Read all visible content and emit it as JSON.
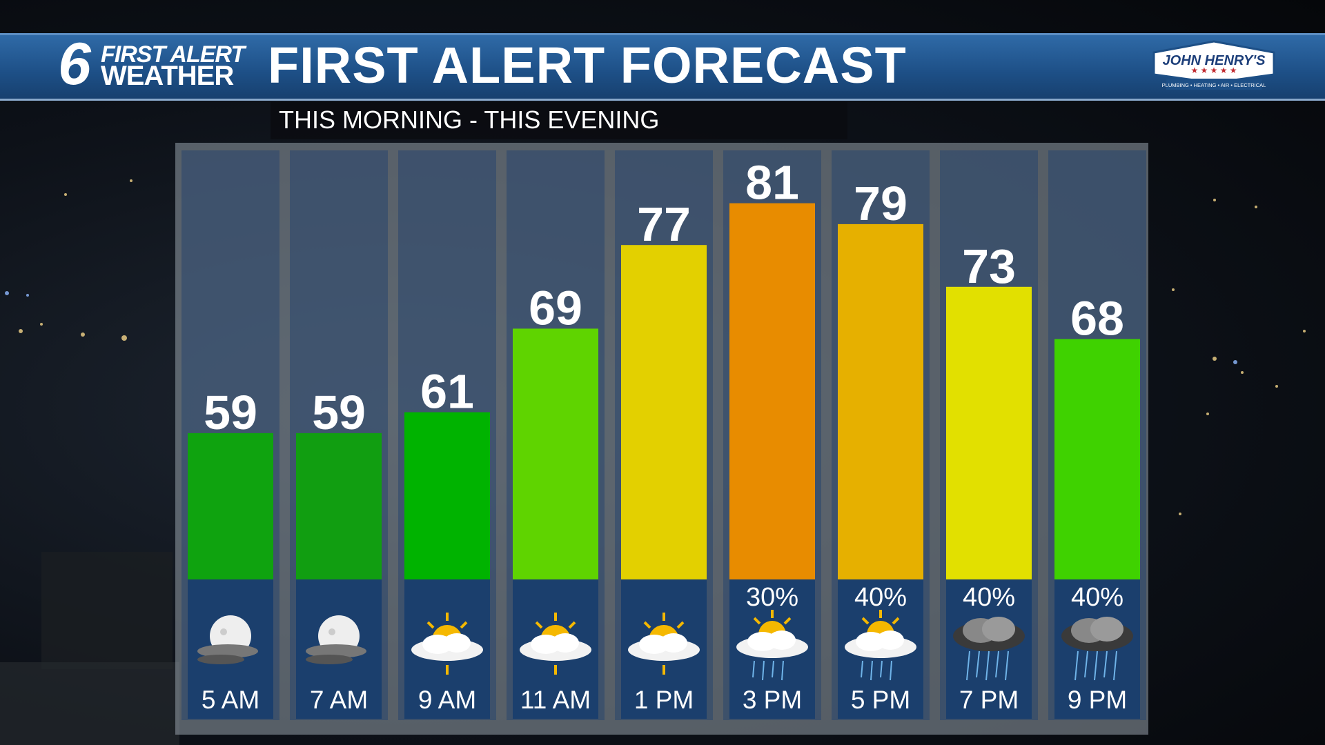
{
  "header": {
    "logo_number": "6",
    "logo_line1": "FIRST ALERT",
    "logo_line2": "WEATHER",
    "title": "FIRST ALERT FORECAST",
    "sponsor": "JOHN HENRY'S",
    "sponsor_tagline": "PLUMBING • HEATING • AIR • ELECTRICAL"
  },
  "subtitle": "THIS MORNING - THIS EVENING",
  "colors": {
    "header_blue": "#1d4f86",
    "icon_box": "#1b3f6d",
    "green_dark": "#13a10e",
    "green": "#00b300",
    "lime": "#5fd400",
    "yellow": "#e3d000",
    "orange": "#e88c00",
    "amber": "#e6b000",
    "yellow_bright": "#e2e000"
  },
  "chart_data": {
    "type": "bar",
    "title": "FIRST ALERT FORECAST",
    "subtitle": "THIS MORNING - THIS EVENING",
    "categories": [
      "5 AM",
      "7 AM",
      "9 AM",
      "11 AM",
      "1 PM",
      "3 PM",
      "5 PM",
      "7 PM",
      "9 PM"
    ],
    "values": [
      59,
      59,
      61,
      69,
      77,
      81,
      79,
      73,
      68
    ],
    "bar_colors": [
      "#0fa30f",
      "#119e11",
      "#00b300",
      "#5fd400",
      "#e3d000",
      "#e88c00",
      "#e6b000",
      "#e2e000",
      "#3fd200"
    ],
    "precip_chance": [
      "",
      "",
      "",
      "",
      "",
      "30%",
      "40%",
      "40%",
      "40%"
    ],
    "icons": [
      "moon-cloud-icon",
      "moon-cloud-icon",
      "partly-sunny-icon",
      "partly-sunny-icon",
      "partly-sunny-icon",
      "sun-cloud-rain-icon",
      "sun-cloud-rain-icon",
      "rain-cloud-icon",
      "rain-cloud-icon"
    ],
    "ylim": [
      45,
      85
    ],
    "grid": false,
    "xlabel": "",
    "ylabel": ""
  }
}
